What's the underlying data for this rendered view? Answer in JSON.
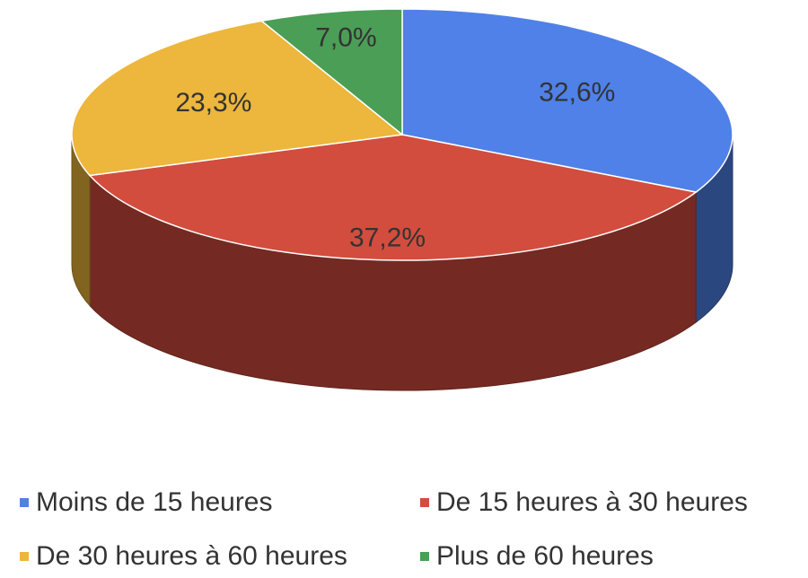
{
  "chart_data": {
    "type": "pie",
    "categories": [
      "Moins de 15 heures",
      "De 15 heures à 30 heures",
      "De 30 heures à 60 heures",
      "Plus de 60 heures"
    ],
    "values": [
      32.6,
      37.2,
      23.3,
      7.0
    ],
    "value_labels": [
      "32,6%",
      "37,2%",
      "23,3%",
      "7,0%"
    ],
    "colors": [
      "#4f81e8",
      "#d24d3e",
      "#edb63c",
      "#4b9e56"
    ],
    "legend": "bottom"
  }
}
